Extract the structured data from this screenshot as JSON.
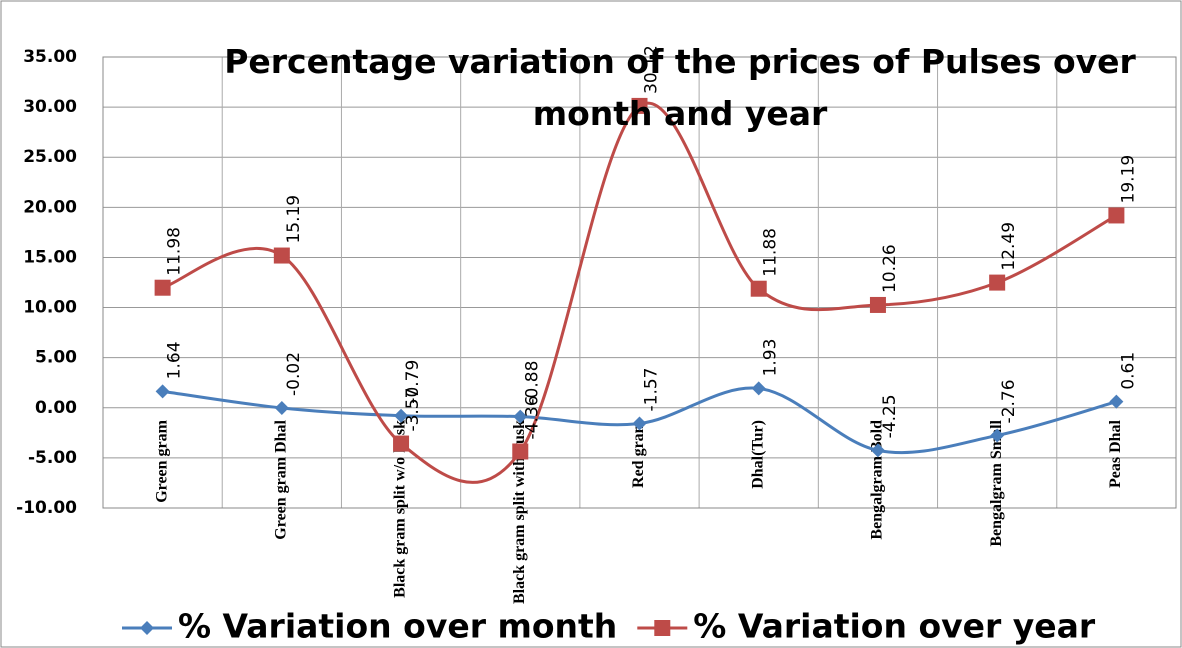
{
  "chart_data": {
    "type": "line",
    "title": "Percentage variation of the prices of Pulses over month and year",
    "categories": [
      "Green gram",
      "Green gram Dhal",
      "Black gram  split w/o husk",
      "Black gram  split with husk",
      "Red gram",
      "Dhal(Tur)",
      "Bengalgram Bold",
      "Bengalgram Small",
      "Peas Dhal"
    ],
    "series": [
      {
        "name": "% Variation over month",
        "color": "#4a7ebb",
        "marker": "diamond",
        "values": [
          1.64,
          -0.02,
          -0.79,
          -0.88,
          -1.57,
          1.93,
          -4.25,
          -2.76,
          0.61
        ]
      },
      {
        "name": "% Variation over year",
        "color": "#be4b48",
        "marker": "square",
        "values": [
          11.98,
          15.19,
          -3.57,
          -4.36,
          30.12,
          11.88,
          10.26,
          12.49,
          19.19
        ]
      }
    ],
    "ylim": [
      -10,
      35
    ],
    "yticks": [
      {
        "value": -10,
        "label": "-10.00"
      },
      {
        "value": -5,
        "label": "-5.00"
      },
      {
        "value": 0,
        "label": "0.00"
      },
      {
        "value": 5,
        "label": "5.00"
      },
      {
        "value": 10,
        "label": "10.00"
      },
      {
        "value": 15,
        "label": "15.00"
      },
      {
        "value": 20,
        "label": "20.00"
      },
      {
        "value": 25,
        "label": "25.00"
      },
      {
        "value": 30,
        "label": "30.00"
      },
      {
        "value": 35,
        "label": "35.00"
      }
    ],
    "grid": true,
    "legend": "bottom"
  }
}
